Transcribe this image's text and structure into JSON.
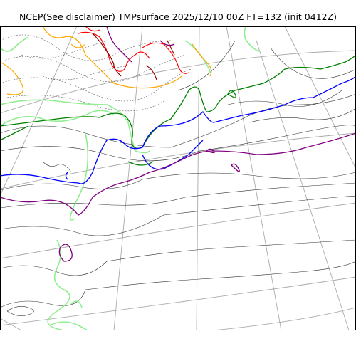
{
  "title": "NCEP(See disclaimer) TMPsurface 2025/12/10 00Z FT=132 (init 0412Z)",
  "map": {
    "projection": "polar-stereographic",
    "contours": [
      {
        "name": "contour-black-thin",
        "color": "#333333"
      },
      {
        "name": "contour-black-dashed",
        "color": "#333333"
      },
      {
        "name": "contour-lightgreen",
        "color": "#90ee90"
      },
      {
        "name": "contour-green",
        "color": "#008000"
      },
      {
        "name": "contour-blue",
        "color": "#0000ff"
      },
      {
        "name": "contour-purple",
        "color": "#800080"
      },
      {
        "name": "contour-orange",
        "color": "#ffa500"
      },
      {
        "name": "contour-red",
        "color": "#ff0000"
      },
      {
        "name": "contour-darkred",
        "color": "#8b0000"
      }
    ],
    "graticule_color": "#aaaaaa"
  }
}
